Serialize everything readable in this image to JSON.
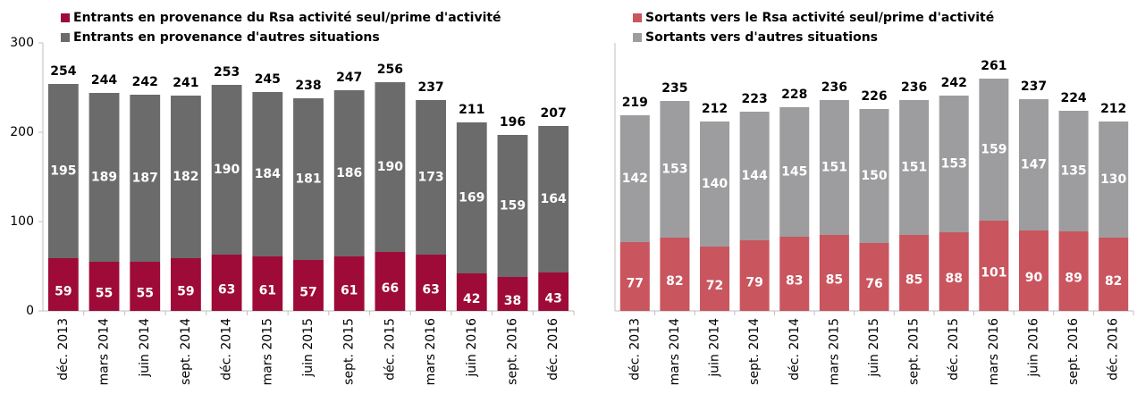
{
  "chart_data": [
    {
      "type": "bar",
      "stacked": true,
      "categories": [
        "déc. 2013",
        "mars 2014",
        "juin 2014",
        "sept. 2014",
        "déc. 2014",
        "mars 2015",
        "juin 2015",
        "sept. 2015",
        "déc. 2015",
        "mars 2016",
        "juin 2016",
        "sept. 2016",
        "déc. 2016"
      ],
      "series": [
        {
          "name": "Entrants en provenance du Rsa activité seul/prime d'activité",
          "color": "#9e0b38",
          "values": [
            59,
            55,
            55,
            59,
            63,
            61,
            57,
            61,
            66,
            63,
            42,
            38,
            43
          ]
        },
        {
          "name": "Entrants en provenance d'autres situations",
          "color": "#6b6b6b",
          "values": [
            195,
            189,
            187,
            182,
            190,
            184,
            181,
            186,
            190,
            173,
            169,
            159,
            164
          ]
        }
      ],
      "totals": [
        254,
        244,
        242,
        241,
        253,
        245,
        238,
        247,
        256,
        237,
        211,
        196,
        207
      ],
      "ylim": [
        0,
        300
      ],
      "yticks": [
        0,
        100,
        200,
        300
      ]
    },
    {
      "type": "bar",
      "stacked": true,
      "categories": [
        "déc. 2013",
        "mars 2014",
        "juin 2014",
        "sept. 2014",
        "déc. 2014",
        "mars 2015",
        "juin 2015",
        "sept. 2015",
        "déc. 2015",
        "mars 2016",
        "juin 2016",
        "sept. 2016",
        "déc. 2016"
      ],
      "series": [
        {
          "name": "Sortants vers le Rsa activité seul/prime d'activité",
          "color": "#c9555e",
          "values": [
            77,
            82,
            72,
            79,
            83,
            85,
            76,
            85,
            88,
            101,
            90,
            89,
            82
          ]
        },
        {
          "name": "Sortants vers d'autres situations",
          "color": "#9d9d9f",
          "values": [
            142,
            153,
            140,
            144,
            145,
            151,
            150,
            151,
            153,
            159,
            147,
            135,
            130
          ]
        }
      ],
      "totals": [
        219,
        235,
        212,
        223,
        228,
        236,
        226,
        236,
        242,
        261,
        237,
        224,
        212
      ],
      "ylim": [
        0,
        300
      ]
    }
  ]
}
